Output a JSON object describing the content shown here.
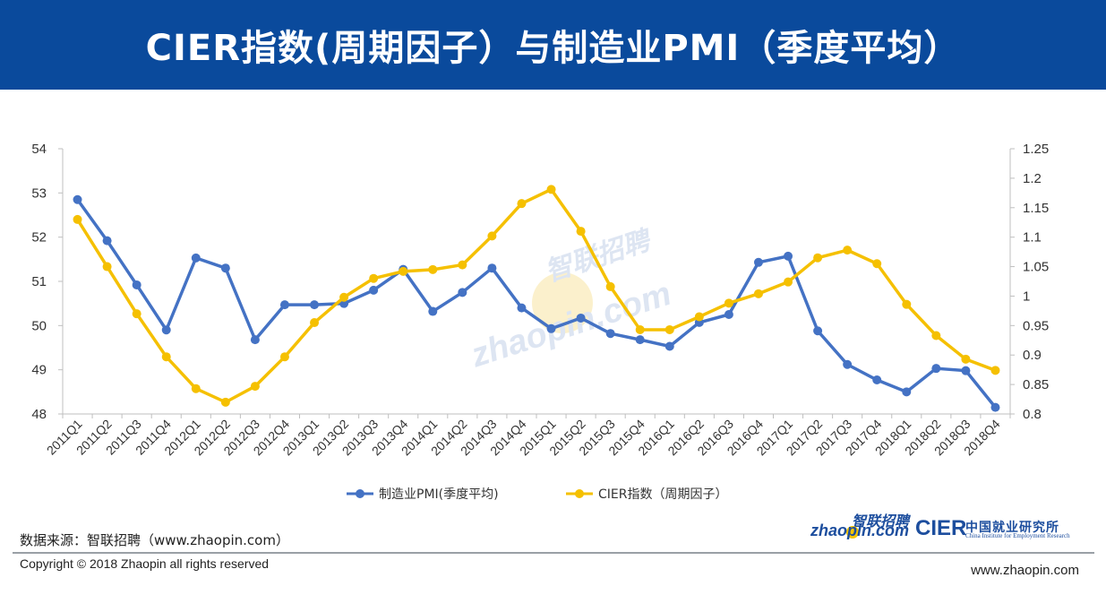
{
  "header": {
    "title": "CIER指数(周期因子）与制造业PMI（季度平均）"
  },
  "chart_data": {
    "type": "line",
    "categories": [
      "2011Q1",
      "2011Q2",
      "2011Q3",
      "2011Q4",
      "2012Q1",
      "2012Q2",
      "2012Q3",
      "2012Q4",
      "2013Q1",
      "2013Q2",
      "2013Q3",
      "2013Q4",
      "2014Q1",
      "2014Q2",
      "2014Q3",
      "2014Q4",
      "2015Q1",
      "2015Q2",
      "2015Q3",
      "2015Q4",
      "2016Q1",
      "2016Q2",
      "2016Q3",
      "2016Q4",
      "2017Q1",
      "2017Q2",
      "2017Q3",
      "2017Q4",
      "2018Q1",
      "2018Q2",
      "2018Q3",
      "2018Q4"
    ],
    "series": [
      {
        "name": "制造业PMI(季度平均)",
        "axis": "left",
        "color": "#4472c4",
        "values": [
          52.85,
          51.92,
          50.92,
          49.9,
          51.53,
          51.3,
          49.68,
          50.47,
          50.47,
          50.5,
          50.8,
          51.27,
          50.32,
          50.75,
          51.3,
          50.4,
          49.93,
          50.17,
          49.82,
          49.68,
          49.53,
          50.07,
          50.25,
          51.43,
          51.57,
          49.88,
          49.12,
          48.77,
          48.5,
          49.03,
          48.98,
          48.15
        ]
      },
      {
        "name": "CIER指数（周期因子）",
        "axis": "right",
        "color": "#f5c000",
        "values": [
          1.13,
          1.05,
          0.97,
          0.897,
          0.843,
          0.82,
          0.847,
          0.897,
          0.955,
          0.998,
          1.03,
          1.042,
          1.045,
          1.053,
          1.102,
          1.157,
          1.181,
          1.11,
          1.016,
          0.943,
          0.943,
          0.965,
          0.988,
          1.004,
          1.024,
          1.065,
          1.078,
          1.055,
          0.986,
          0.933,
          0.893,
          0.874
        ]
      }
    ],
    "y_left": {
      "min": 48,
      "max": 54,
      "ticks": [
        "48",
        "49",
        "50",
        "51",
        "52",
        "53",
        "54"
      ]
    },
    "y_right": {
      "min": 0.8,
      "max": 1.25,
      "ticks": [
        "0.8",
        "0.85",
        "0.9",
        "0.95",
        "1",
        "1.05",
        "1.1",
        "1.15",
        "1.2",
        "1.25"
      ]
    },
    "grid": false,
    "legend": "bottom"
  },
  "watermark": {
    "cn": "智联招聘",
    "en": "zhaopin.com"
  },
  "footer": {
    "source": "数据来源：智联招聘（www.zhaopin.com）",
    "copyright": "Copyright © 2018 Zhaopin all rights reserved",
    "url": "www.zhaopin.com"
  },
  "logos": {
    "zhaopin_cn": "智联招聘",
    "zhaopin_en": "zhaopin.com",
    "cier": "CIER",
    "cier_cn": "中国就业研究所",
    "cier_en": "China Institute for Employment Research"
  },
  "colors": {
    "header_bg": "#0a4a9c",
    "pmi": "#4472c4",
    "cier": "#f5c000"
  }
}
